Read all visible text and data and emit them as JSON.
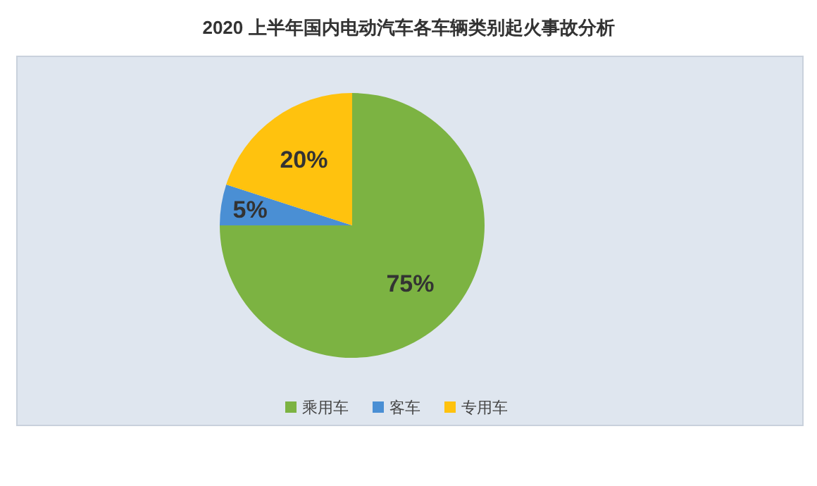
{
  "chart_data": {
    "type": "pie",
    "title": "2020 上半年国内电动汽车各车辆类别起火事故分析",
    "categories": [
      "乘用车",
      "客车",
      "专用车"
    ],
    "values": [
      75,
      5,
      20
    ],
    "colors": [
      "#7cb342",
      "#4a8fd4",
      "#ffc20e"
    ],
    "value_labels": [
      "75%",
      "5%",
      "20%"
    ],
    "legend": "bottom"
  }
}
